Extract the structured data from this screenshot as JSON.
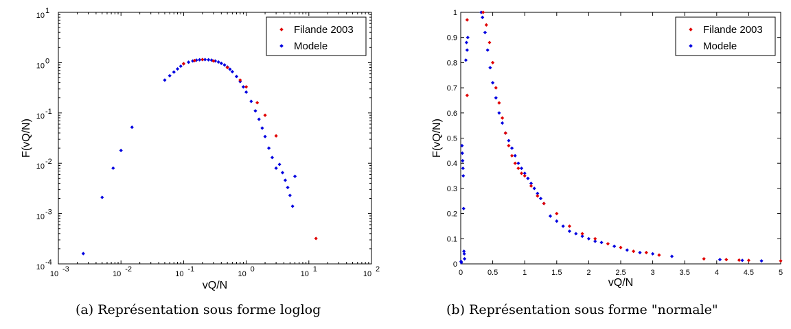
{
  "captions": {
    "a": "(a) Représentation sous forme loglog",
    "b": "(b) Représentation sous forme \"normale\""
  },
  "colors": {
    "filande": "#e00000",
    "modele": "#0000e0",
    "axes": "#000000"
  },
  "chart_data": [
    {
      "type": "scatter",
      "xscale": "log",
      "yscale": "log",
      "xlim": [
        0.001,
        100
      ],
      "ylim": [
        0.0001,
        10
      ],
      "xlabel": "vQ/N",
      "ylabel": "F(vQ/N)",
      "grid": false,
      "legend_position": "top-right",
      "x_tick_labels": [
        {
          "base": "10",
          "exp": "-3"
        },
        {
          "base": "10",
          "exp": "-2"
        },
        {
          "base": "10",
          "exp": "-1"
        },
        {
          "base": "10",
          "exp": "0"
        },
        {
          "base": "10",
          "exp": "1"
        },
        {
          "base": "10",
          "exp": "2"
        }
      ],
      "y_tick_labels": [
        {
          "base": "10",
          "exp": "-4"
        },
        {
          "base": "10",
          "exp": "-3"
        },
        {
          "base": "10",
          "exp": "-2"
        },
        {
          "base": "10",
          "exp": "-1"
        },
        {
          "base": "10",
          "exp": "0"
        },
        {
          "base": "10",
          "exp": "1"
        }
      ],
      "series": [
        {
          "name": "Filande 2003",
          "color": "#e00000",
          "x": [
            0.1,
            0.15,
            0.2,
            0.3,
            0.5,
            0.8,
            1.0,
            1.5,
            2.0,
            3.0,
            13.0
          ],
          "y": [
            0.95,
            1.1,
            1.15,
            1.08,
            0.8,
            0.45,
            0.33,
            0.16,
            0.09,
            0.035,
            0.00032
          ]
        },
        {
          "name": "Modele",
          "color": "#0000e0",
          "x": [
            0.0025,
            0.005,
            0.0075,
            0.01,
            0.015,
            0.05,
            0.06,
            0.07,
            0.08,
            0.09,
            0.1,
            0.12,
            0.14,
            0.16,
            0.18,
            0.2,
            0.22,
            0.25,
            0.28,
            0.32,
            0.36,
            0.4,
            0.45,
            0.5,
            0.55,
            0.6,
            0.7,
            0.8,
            0.9,
            1.0,
            1.2,
            1.4,
            1.6,
            1.8,
            2.0,
            2.3,
            2.6,
            3.0,
            3.4,
            3.8,
            4.2,
            4.6,
            5.0,
            5.5,
            6.0
          ],
          "y": [
            0.00016,
            0.0021,
            0.008,
            0.018,
            0.052,
            0.45,
            0.55,
            0.65,
            0.75,
            0.85,
            0.95,
            1.02,
            1.08,
            1.12,
            1.14,
            1.15,
            1.15,
            1.14,
            1.12,
            1.08,
            1.03,
            0.97,
            0.9,
            0.82,
            0.74,
            0.66,
            0.53,
            0.42,
            0.33,
            0.26,
            0.17,
            0.11,
            0.075,
            0.05,
            0.034,
            0.02,
            0.013,
            0.008,
            0.0095,
            0.0065,
            0.0046,
            0.0033,
            0.0023,
            0.0014,
            0.0055
          ]
        }
      ]
    },
    {
      "type": "scatter",
      "xscale": "linear",
      "yscale": "linear",
      "xlim": [
        0,
        5
      ],
      "ylim": [
        0,
        1
      ],
      "xlabel": "vQ/N",
      "ylabel": "F(vQ/N)",
      "grid": false,
      "legend_position": "top-right",
      "x_ticks": [
        0,
        0.5,
        1,
        1.5,
        2,
        2.5,
        3,
        3.5,
        4,
        4.5,
        5
      ],
      "x_tick_labels": [
        "0",
        "0.5",
        "1",
        "1.5",
        "2",
        "2.5",
        "3",
        "3.5",
        "4",
        "4.5",
        "5"
      ],
      "y_ticks": [
        0,
        0.1,
        0.2,
        0.3,
        0.4,
        0.5,
        0.6,
        0.7,
        0.8,
        0.9,
        1
      ],
      "y_tick_labels": [
        "0",
        "0.1",
        "0.2",
        "0.3",
        "0.4",
        "0.5",
        "0.6",
        "0.7",
        "0.8",
        "0.9",
        "1"
      ],
      "series": [
        {
          "name": "Filande 2003",
          "color": "#e00000",
          "x": [
            0.1,
            0.1,
            0.35,
            0.4,
            0.45,
            0.5,
            0.55,
            0.6,
            0.65,
            0.7,
            0.75,
            0.8,
            0.85,
            0.9,
            0.95,
            1.0,
            1.1,
            1.2,
            1.3,
            1.5,
            1.7,
            1.9,
            2.1,
            2.3,
            2.5,
            2.7,
            2.9,
            3.1,
            3.8,
            4.15,
            4.35,
            4.5,
            5.0
          ],
          "y": [
            0.97,
            0.67,
            1.0,
            0.95,
            0.88,
            0.8,
            0.7,
            0.64,
            0.58,
            0.52,
            0.47,
            0.43,
            0.4,
            0.38,
            0.36,
            0.35,
            0.31,
            0.27,
            0.24,
            0.2,
            0.15,
            0.12,
            0.1,
            0.08,
            0.065,
            0.05,
            0.045,
            0.035,
            0.02,
            0.017,
            0.015,
            0.014,
            0.012
          ]
        },
        {
          "name": "Modele",
          "color": "#0000e0",
          "x": [
            0.02,
            0.025,
            0.03,
            0.035,
            0.04,
            0.045,
            0.05,
            0.055,
            0.06,
            0.08,
            0.09,
            0.1,
            0.11,
            0.32,
            0.34,
            0.38,
            0.42,
            0.46,
            0.5,
            0.55,
            0.6,
            0.65,
            0.7,
            0.75,
            0.8,
            0.85,
            0.9,
            0.95,
            1.0,
            1.05,
            1.1,
            1.15,
            1.2,
            1.25,
            1.3,
            1.4,
            1.5,
            1.6,
            1.7,
            1.8,
            1.9,
            2.0,
            2.1,
            2.2,
            2.4,
            2.6,
            2.8,
            3.0,
            3.3,
            4.05,
            4.4,
            4.7,
            0.005,
            0.01
          ],
          "y": [
            0.47,
            0.44,
            0.41,
            0.38,
            0.35,
            0.22,
            0.05,
            0.04,
            0.02,
            0.81,
            0.88,
            0.85,
            0.9,
            1.0,
            0.98,
            0.92,
            0.85,
            0.78,
            0.72,
            0.66,
            0.6,
            0.56,
            0.52,
            0.49,
            0.46,
            0.43,
            0.4,
            0.38,
            0.36,
            0.34,
            0.32,
            0.3,
            0.28,
            0.26,
            0.24,
            0.19,
            0.17,
            0.15,
            0.13,
            0.12,
            0.11,
            0.1,
            0.09,
            0.085,
            0.07,
            0.055,
            0.045,
            0.04,
            0.03,
            0.017,
            0.014,
            0.012,
            0.01,
            0.005
          ]
        }
      ]
    }
  ]
}
